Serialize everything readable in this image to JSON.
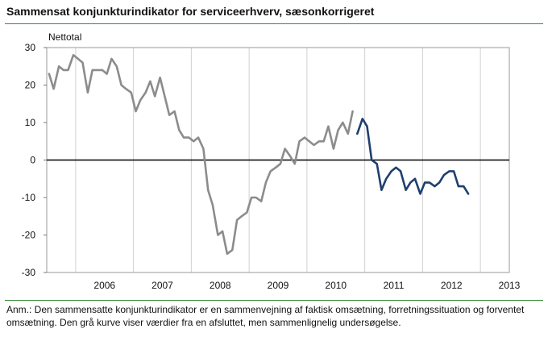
{
  "title": "Sammensat konjunkturindikator for serviceerhverv, sæsonkorrigeret",
  "note": "Anm.: Den sammensatte konjunkturindikator er en sammenvejning af faktisk omsætning, forretningssituation og forventet omsætning. Den grå kurve viser værdier fra en afsluttet, men sammenlignelig undersøgelse.",
  "chart_data": {
    "type": "line",
    "ylabel": "Nettotal",
    "ylim": [
      -30,
      30
    ],
    "yticks": [
      30,
      20,
      10,
      0,
      -10,
      -20,
      -30
    ],
    "xlim": [
      2005.5,
      2013.5
    ],
    "xticklabels": [
      "2006",
      "2007",
      "2008",
      "2009",
      "2010",
      "2011",
      "2012",
      "2013"
    ],
    "grid": "vertical",
    "series": [
      {
        "color": "#8c8c8c",
        "x": [
          2005.54,
          2005.62,
          2005.71,
          2005.79,
          2005.87,
          2005.96,
          2006.04,
          2006.12,
          2006.21,
          2006.29,
          2006.37,
          2006.46,
          2006.54,
          2006.62,
          2006.71,
          2006.79,
          2006.87,
          2006.96,
          2007.04,
          2007.12,
          2007.21,
          2007.29,
          2007.37,
          2007.46,
          2007.54,
          2007.62,
          2007.71,
          2007.79,
          2007.87,
          2007.96,
          2008.04,
          2008.12,
          2008.21,
          2008.29,
          2008.37,
          2008.46,
          2008.54,
          2008.62,
          2008.71,
          2008.79,
          2008.87,
          2008.96,
          2009.04,
          2009.12,
          2009.21,
          2009.29,
          2009.37,
          2009.46,
          2009.54,
          2009.62,
          2009.71,
          2009.79,
          2009.87,
          2009.96,
          2010.04,
          2010.12,
          2010.21,
          2010.29,
          2010.37,
          2010.46,
          2010.54,
          2010.62,
          2010.71,
          2010.79
        ],
        "y": [
          23,
          19,
          25,
          24,
          24,
          28,
          27,
          26,
          18,
          24,
          24,
          24,
          23,
          27,
          25,
          20,
          19,
          18,
          13,
          16,
          18,
          21,
          17,
          22,
          17,
          12,
          13,
          8,
          6,
          6,
          5,
          6,
          3,
          -8,
          -12,
          -20,
          -19,
          -25,
          -24,
          -16,
          -15,
          -14,
          -10,
          -10,
          -11,
          -6,
          -3,
          -2,
          -1,
          3,
          1,
          -1,
          5,
          6,
          5,
          4,
          5,
          5,
          9,
          3,
          8,
          10,
          7,
          13
        ]
      },
      {
        "color": "#1f3f6e",
        "x": [
          2010.87,
          2010.96,
          2011.04,
          2011.12,
          2011.21,
          2011.29,
          2011.37,
          2011.46,
          2011.54,
          2011.62,
          2011.71,
          2011.79,
          2011.87,
          2011.96,
          2012.04,
          2012.12,
          2012.21,
          2012.29,
          2012.37,
          2012.46,
          2012.54,
          2012.62,
          2012.71,
          2012.79
        ],
        "y": [
          7,
          11,
          9,
          0,
          -1,
          -8,
          -5,
          -3,
          -2,
          -3,
          -8,
          -6,
          -5,
          -9,
          -6,
          -6,
          -7,
          -6,
          -4,
          -3,
          -3,
          -7,
          -7,
          -9
        ]
      }
    ]
  }
}
